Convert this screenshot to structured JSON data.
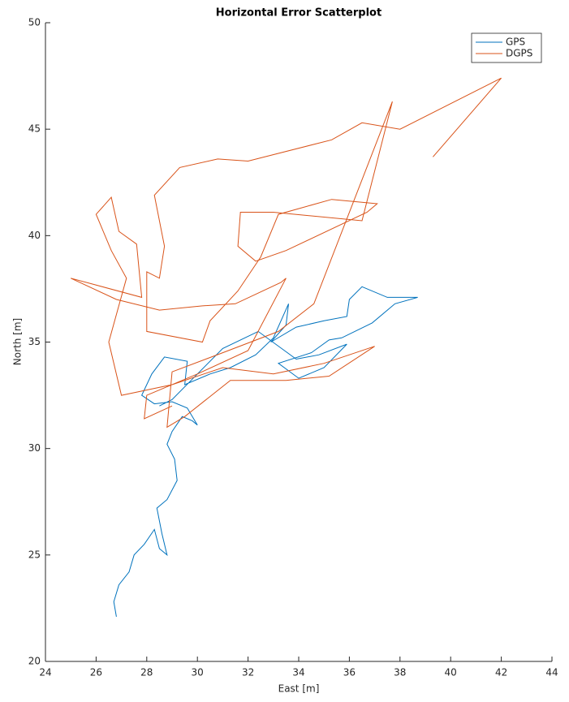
{
  "chart_data": {
    "type": "line",
    "title": "Horizontal Error Scatterplot",
    "x_label": "East [m]",
    "y_label": "North [m]",
    "xlim": [
      24,
      44
    ],
    "ylim": [
      20,
      50
    ],
    "xticks": [
      24,
      26,
      28,
      30,
      32,
      34,
      36,
      38,
      40,
      42,
      44
    ],
    "yticks": [
      20,
      25,
      30,
      35,
      40,
      45,
      50
    ],
    "legend": "top-right",
    "series": [
      {
        "name": "GPS",
        "color": "#0072bd",
        "x": [
          26.8,
          26.7,
          26.9,
          27.3,
          27.5,
          27.9,
          28.3,
          28.5,
          28.8,
          28.6,
          28.4,
          28.8,
          29.2,
          29.1,
          28.8,
          29.0,
          29.4,
          29.8,
          30.0,
          29.6,
          29.0,
          28.3,
          27.8,
          28.2,
          28.7,
          29.6,
          29.5,
          30.5,
          31.3,
          32.3,
          33.0,
          33.6,
          33.5,
          32.9,
          33.9,
          35.0,
          35.9,
          36.0,
          36.5,
          37.5,
          38.7,
          37.8,
          36.9,
          35.7,
          35.2,
          34.5,
          33.2,
          34.0,
          35.0,
          35.9,
          34.8,
          33.9,
          32.4,
          31.0,
          29.0,
          28.5
        ],
        "values": [
          22.1,
          22.8,
          23.6,
          24.2,
          25.0,
          25.5,
          26.2,
          25.3,
          25.0,
          26.0,
          27.2,
          27.6,
          28.5,
          29.5,
          30.2,
          30.8,
          31.5,
          31.3,
          31.1,
          31.9,
          32.2,
          32.1,
          32.5,
          33.5,
          34.3,
          34.1,
          33.0,
          33.5,
          33.8,
          34.4,
          35.2,
          36.8,
          35.8,
          35.0,
          35.7,
          36.0,
          36.2,
          37.0,
          37.6,
          37.1,
          37.1,
          36.8,
          35.9,
          35.2,
          35.1,
          34.5,
          34.0,
          33.3,
          33.8,
          34.9,
          34.4,
          34.2,
          35.5,
          34.7,
          32.3,
          32.0
        ]
      },
      {
        "name": "DGPS",
        "color": "#d95319",
        "x": [
          39.3,
          42.0,
          38.0,
          36.5,
          35.3,
          32.0,
          30.8,
          29.3,
          28.3,
          28.7,
          28.5,
          28.0,
          28.0,
          30.2,
          30.5,
          31.6,
          32.5,
          33.2,
          35.3,
          37.1,
          36.7,
          33.5,
          32.3,
          31.6,
          31.7,
          33.0,
          36.5,
          37.7,
          34.6,
          33.2,
          31.0,
          29.0,
          28.8,
          29.5,
          31.3,
          33.5,
          35.2,
          37.0,
          35.0,
          33.0,
          31.0,
          29.0,
          27.0,
          26.5,
          27.2,
          26.6,
          26.0,
          26.6,
          26.9,
          27.6,
          27.8,
          25.0,
          26.8,
          28.5,
          30.2,
          31.5,
          33.3,
          33.5,
          32.0,
          30.0,
          28.0,
          27.9,
          29.0
        ],
        "values": [
          43.7,
          47.4,
          45.0,
          45.3,
          44.5,
          43.5,
          43.6,
          43.2,
          41.9,
          39.5,
          38.0,
          38.3,
          35.5,
          35.0,
          36.0,
          37.4,
          39.0,
          41.0,
          41.7,
          41.5,
          41.1,
          39.3,
          38.8,
          39.5,
          41.1,
          41.1,
          40.7,
          46.3,
          36.8,
          35.5,
          34.5,
          33.6,
          31.0,
          31.5,
          33.2,
          33.2,
          33.4,
          34.8,
          34.0,
          33.5,
          33.8,
          33.0,
          32.5,
          35.0,
          38.0,
          39.3,
          41.0,
          41.8,
          40.2,
          39.6,
          37.1,
          38.0,
          37.0,
          36.5,
          36.7,
          36.8,
          37.8,
          38.0,
          34.6,
          33.5,
          32.5,
          31.4,
          32.0
        ]
      }
    ]
  }
}
